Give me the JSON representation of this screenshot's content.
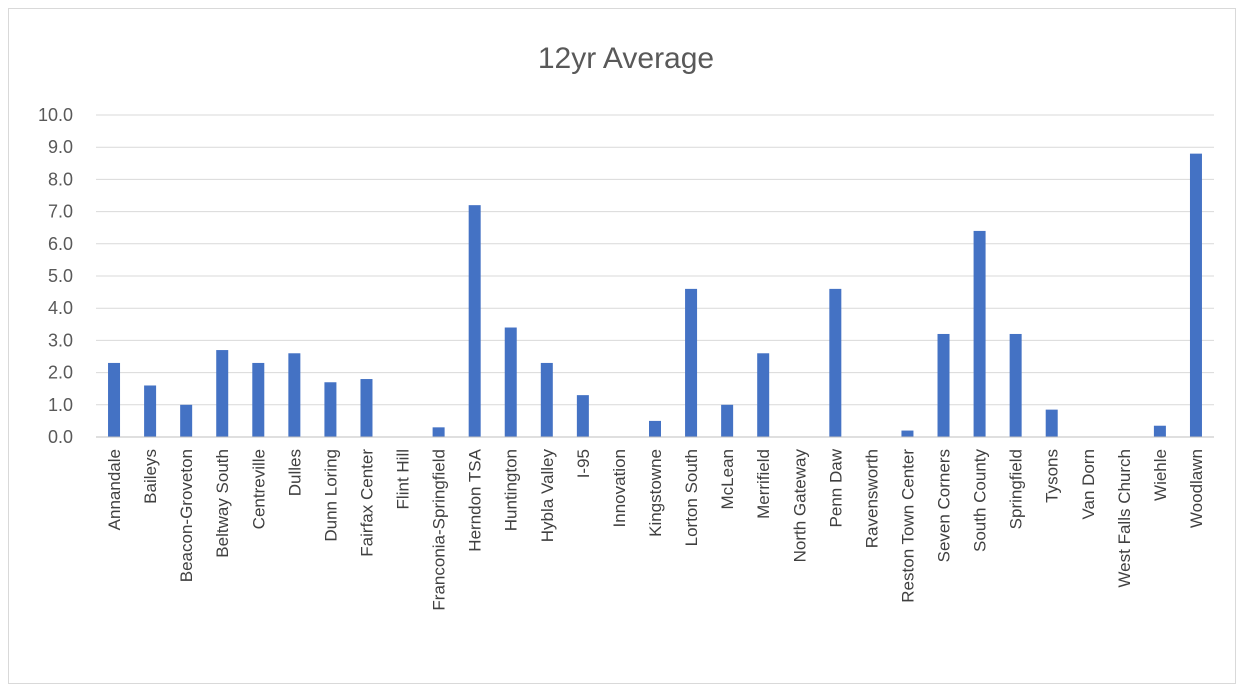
{
  "chart_data": {
    "type": "bar",
    "title": "12yr Average",
    "xlabel": "",
    "ylabel": "",
    "ylim": [
      0,
      10
    ],
    "yticks": [
      "0.0",
      "1.0",
      "2.0",
      "3.0",
      "4.0",
      "5.0",
      "6.0",
      "7.0",
      "8.0",
      "9.0",
      "10.0"
    ],
    "grid": true,
    "legend": "none",
    "bar_color": "#4472c4",
    "categories": [
      "Annandale",
      "Baileys",
      "Beacon-Groveton",
      "Beltway South",
      "Centreville",
      "Dulles",
      "Dunn Loring",
      "Fairfax Center",
      "Flint Hill",
      "Franconia-Springfield",
      "Herndon TSA",
      "Huntington",
      "Hybla Valley",
      "I-95",
      "Innovation",
      "Kingstowne",
      "Lorton South",
      "McLean",
      "Merrifield",
      "North Gateway",
      "Penn Daw",
      "Ravensworth",
      "Reston Town Center",
      "Seven Corners",
      "South County",
      "Springfield",
      "Tysons",
      "Van Dorn",
      "West Falls Church",
      "Wiehle",
      "Woodlawn"
    ],
    "values": [
      2.3,
      1.6,
      1.0,
      2.7,
      2.3,
      2.6,
      1.7,
      1.8,
      0.0,
      0.3,
      7.2,
      3.4,
      2.3,
      1.3,
      0.0,
      0.5,
      4.6,
      1.0,
      2.6,
      0.0,
      4.6,
      0.0,
      0.2,
      3.2,
      6.4,
      3.2,
      0.85,
      0.0,
      0.0,
      0.35,
      8.8
    ]
  }
}
